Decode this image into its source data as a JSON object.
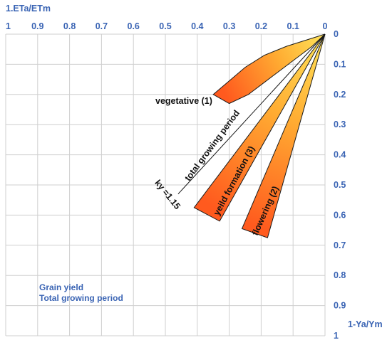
{
  "chart_data": {
    "type": "line",
    "title": "",
    "xlabel": "1.ETa/ETm",
    "ylabel": "1-Ya/Ym",
    "x_ticks": [
      "1",
      "0.9",
      "0.8",
      "0.7",
      "0.6",
      "0.5",
      "0.4",
      "0.3",
      "0.2",
      "0.1",
      "0"
    ],
    "y_ticks": [
      "0",
      "0.1",
      "0.2",
      "0.3",
      "0.4",
      "0.5",
      "0.6",
      "0.7",
      "0.8",
      "0.9",
      "1"
    ],
    "xlim": [
      1,
      0
    ],
    "ylim": [
      0,
      1
    ],
    "grid": true,
    "note_lines": [
      "Grain yield",
      "Total growing period"
    ],
    "series": [
      {
        "label": "total growing period",
        "ky_label": "ky =1.15",
        "kind": "line",
        "points": [
          [
            0,
            0
          ],
          [
            0.46,
            0.53
          ]
        ]
      },
      {
        "label": "vegetative (1)",
        "kind": "band",
        "upper": [
          [
            0,
            0
          ],
          [
            0.06,
            0.02
          ],
          [
            0.12,
            0.04
          ],
          [
            0.19,
            0.07
          ],
          [
            0.25,
            0.11
          ],
          [
            0.3,
            0.155
          ],
          [
            0.35,
            0.2
          ]
        ],
        "lower": [
          [
            0,
            0
          ],
          [
            0.04,
            0.04
          ],
          [
            0.09,
            0.08
          ],
          [
            0.14,
            0.12
          ],
          [
            0.19,
            0.16
          ],
          [
            0.24,
            0.2
          ],
          [
            0.3,
            0.23
          ]
        ]
      },
      {
        "label": "yeild formation (3)",
        "kind": "band",
        "edge_a": [
          [
            0,
            0
          ],
          [
            0.41,
            0.575
          ]
        ],
        "edge_b": [
          [
            0,
            0
          ],
          [
            0.33,
            0.62
          ]
        ]
      },
      {
        "label": "flowering (2)",
        "kind": "band",
        "edge_a": [
          [
            0,
            0
          ],
          [
            0.26,
            0.645
          ]
        ],
        "edge_b": [
          [
            0,
            0
          ],
          [
            0.18,
            0.675
          ]
        ]
      }
    ]
  },
  "colors": {
    "grid": "#cfcfcf",
    "axis_text": "#3a64b4",
    "band_tip": "#ffe45a",
    "band_base": "#ff5a1e",
    "outline": "#1a1a1a"
  }
}
